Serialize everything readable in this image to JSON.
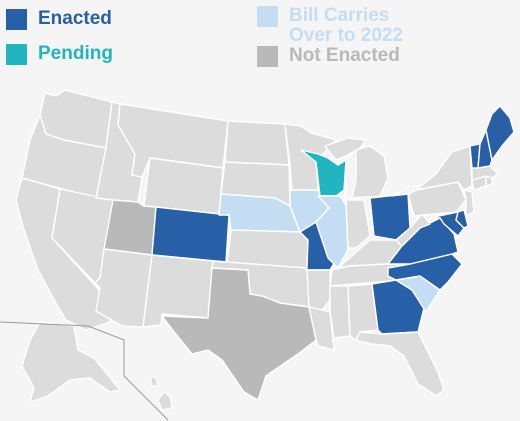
{
  "colors": {
    "enacted": "#2860a8",
    "pending": "#20b5c0",
    "carryover": "#c4ddf3",
    "not_enacted": "#b9b9b9",
    "default": "#dcdcdc",
    "background": "#f5f5f5"
  },
  "legend": [
    {
      "key": "enacted",
      "lines": [
        "Enacted"
      ]
    },
    {
      "key": "pending",
      "lines": [
        "Pending"
      ]
    },
    {
      "key": "carryover",
      "lines": [
        "Bill Carries",
        "Over to 2022"
      ]
    },
    {
      "key": "not_enacted",
      "lines": [
        "Not Enacted"
      ]
    }
  ],
  "states": {
    "ME": "enacted",
    "NH": "enacted",
    "VT": "enacted",
    "CO": "enacted",
    "MO": "enacted",
    "OH": "enacted",
    "VA": "enacted",
    "NC": "enacted",
    "GA": "enacted",
    "MD": "enacted",
    "DE": "enacted",
    "WI": "pending",
    "NE": "carryover",
    "IA": "carryover",
    "IL": "carryover",
    "SC": "carryover",
    "UT": "not_enacted",
    "TX": "not_enacted"
  }
}
